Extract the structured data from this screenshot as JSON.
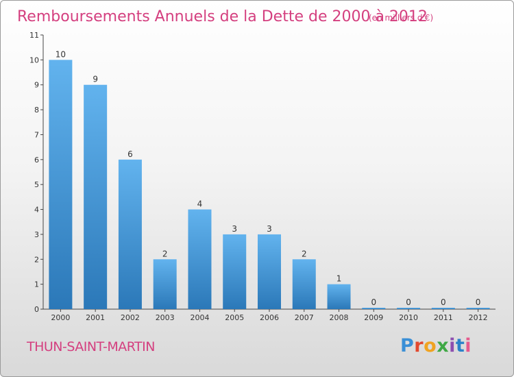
{
  "chart_data": {
    "type": "bar",
    "title": "Remboursements Annuels de la Dette de 2000 à 2012",
    "subtitle": "(en milliers d'€)",
    "categories": [
      "2000",
      "2001",
      "2002",
      "2003",
      "2004",
      "2005",
      "2006",
      "2007",
      "2008",
      "2009",
      "2010",
      "2011",
      "2012"
    ],
    "values": [
      10,
      9,
      6,
      2,
      4,
      3,
      3,
      2,
      1,
      0,
      0,
      0,
      0
    ],
    "ylim": [
      0,
      11
    ],
    "yticks": [
      0,
      1,
      2,
      3,
      4,
      5,
      6,
      7,
      8,
      9,
      10,
      11
    ],
    "grid": false,
    "xlabel": "",
    "ylabel": ""
  },
  "commune": "THUN-SAINT-MARTIN",
  "brand": {
    "letters": [
      "P",
      "r",
      "o",
      "x",
      "i",
      "t",
      "i"
    ],
    "colors": [
      "#3a8fd6",
      "#e2492f",
      "#f0a321",
      "#3fa845",
      "#8d4fb0",
      "#2b82c9",
      "#e65a8d"
    ]
  },
  "colors": {
    "title": "#d43f7f",
    "bar_top": "#62b3ee",
    "bar_bottom": "#2b78b8",
    "axis": "#444444"
  }
}
